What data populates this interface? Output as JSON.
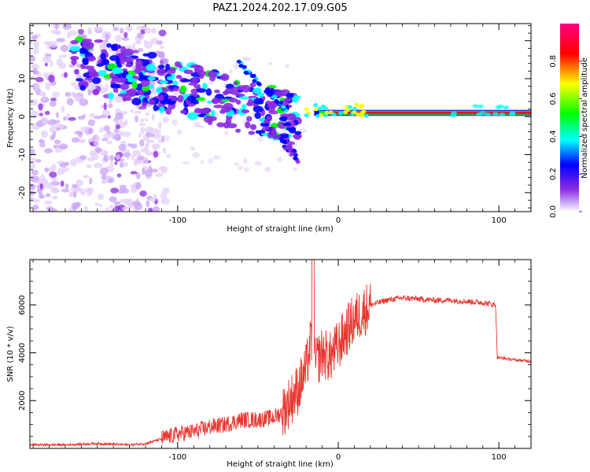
{
  "title": "PAZ1.2024.202.17.09.G05",
  "chart_data": [
    {
      "type": "heatmap",
      "xlabel": "Height of straight line (km)",
      "ylabel": "Frequency (Hz)",
      "xlim": [
        -192,
        120
      ],
      "ylim": [
        -25,
        24.5
      ],
      "xticks": [
        "-100",
        "0",
        "100"
      ],
      "yticks": [
        "20",
        "10",
        "0",
        "-10",
        "-20"
      ],
      "colorbar": {
        "label": "Normalized spectral amplitude",
        "range": [
          0,
          1
        ],
        "ticks": [
          "0.0",
          "0.2",
          "0.4",
          "0.6",
          "0.8"
        ],
        "colors": [
          "#ffffff",
          "#8a2be2",
          "#0000ff",
          "#00ffff",
          "#00ff00",
          "#ffff00",
          "#ff0000",
          "#ff0080"
        ]
      },
      "features": [
        {
          "desc": "carrier line",
          "x": [
            -15,
            120
          ],
          "freq": 1.0,
          "amplitude": 0.9
        },
        {
          "desc": "scattered energy",
          "x": [
            -192,
            -110
          ],
          "freq": [
            -25,
            24
          ],
          "amplitude": 0.1
        },
        {
          "desc": "diagonal band",
          "x": [
            -165,
            -25
          ],
          "freq_start": 15,
          "freq_end": 0,
          "amplitude": 0.3
        }
      ]
    },
    {
      "type": "line",
      "xlabel": "Height of straight line (km)",
      "ylabel": "SNR (10 * v/v)",
      "xlim": [
        -192,
        120
      ],
      "ylim": [
        0,
        7900
      ],
      "xticks": [
        "-100",
        "0",
        "100"
      ],
      "yticks": [
        "6000",
        "4000",
        "2000"
      ],
      "color": "#e8362f",
      "series": [
        {
          "x": [
            -192,
            -170,
            -150,
            -130,
            -120,
            -110,
            -100,
            -90,
            -80,
            -70,
            -60,
            -50,
            -40,
            -35,
            -30,
            -25,
            -20,
            -17,
            -15,
            -10,
            -5,
            0,
            5,
            10,
            15,
            20,
            25,
            30,
            40,
            50,
            60,
            70,
            80,
            90,
            98,
            99,
            100,
            110,
            120
          ],
          "y": [
            150,
            150,
            200,
            150,
            200,
            400,
            600,
            700,
            900,
            1000,
            1200,
            1200,
            1300,
            1500,
            2000,
            2500,
            3300,
            4500,
            3500,
            4000,
            3800,
            4300,
            4900,
            5400,
            5700,
            6000,
            6100,
            6200,
            6300,
            6250,
            6200,
            6200,
            6150,
            6100,
            6000,
            3800,
            3800,
            3700,
            3650
          ]
        }
      ]
    }
  ]
}
